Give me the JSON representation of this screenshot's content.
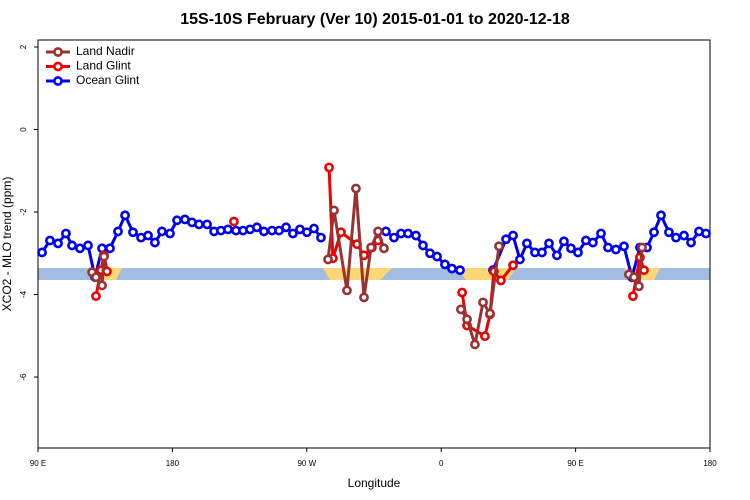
{
  "chart_data": {
    "type": "line",
    "title": "15S-10S February (Ver 10)   2015-01-01 to 2020-12-18",
    "x_label": "Longitude",
    "y_label": "XCO2 - MLO trend (ppm)",
    "xlim": [
      90,
      540
    ],
    "xticks": [
      {
        "value": 90,
        "label": "90 E"
      },
      {
        "value": 180,
        "label": "180"
      },
      {
        "value": 270,
        "label": "90 W"
      },
      {
        "value": 360,
        "label": "0"
      },
      {
        "value": 450,
        "label": "90 E"
      },
      {
        "value": 540,
        "label": "180"
      }
    ],
    "ylim": [
      -7.72,
      2.17
    ],
    "yticks": [
      2,
      0,
      -2,
      -4,
      -6
    ],
    "grid": false,
    "legend": "top-left",
    "series": [
      {
        "name": "Land Nadir",
        "color": "#993333",
        "x": [
          126.2,
          128.8,
          132.9,
          134.2,
          null,
          284.2,
          288.2,
          296.9,
          302.9,
          308.3,
          313.0,
          317.7,
          321.7,
          null,
          373.2,
          377.3,
          382.6,
          388.0,
          392.7,
          398.7,
          null,
          485.7,
          489.1,
          492.4,
          494.5
        ],
        "values": [
          -3.46,
          -3.58,
          -3.78,
          -3.08,
          null,
          -3.15,
          -1.96,
          -3.9,
          -1.43,
          -4.07,
          -2.86,
          -2.47,
          -2.88,
          null,
          -4.36,
          -4.6,
          -5.21,
          -4.19,
          -4.46,
          -2.83,
          null,
          -3.51,
          -3.58,
          -3.8,
          -2.86
        ]
      },
      {
        "name": "Land Glint",
        "color": "#ee0000",
        "x": [
          128.8,
          132.2,
          134.2,
          136.2,
          null,
          221.2,
          null,
          284.9,
          287.5,
          292.9,
          303.6,
          308.3,
          313.6,
          317.7,
          null,
          374.0,
          377.3,
          389.3,
          392.7,
          395.3,
          400.0,
          408.1,
          null,
          488.4,
          493.1,
          495.8
        ],
        "values": [
          -4.04,
          -3.41,
          -3.05,
          -3.44,
          null,
          -2.23,
          null,
          -0.92,
          -3.12,
          -2.49,
          -2.78,
          -3.05,
          -2.86,
          -2.69,
          null,
          -3.95,
          -4.75,
          -5.01,
          -4.48,
          -3.44,
          -3.66,
          -3.29,
          null,
          -4.04,
          -3.1,
          -3.41
        ]
      },
      {
        "name": "Ocean Glint",
        "color": "#0000ee",
        "x": [
          92.7,
          98.0,
          103.4,
          108.7,
          112.8,
          118.1,
          123.5,
          128.2,
          132.9,
          138.2,
          143.6,
          148.3,
          153.6,
          159.0,
          163.7,
          168.3,
          173.0,
          178.4,
          183.1,
          188.4,
          193.1,
          197.8,
          203.2,
          207.9,
          212.5,
          217.2,
          222.6,
          227.3,
          232.0,
          236.6,
          241.3,
          246.7,
          251.4,
          256.1,
          260.7,
          265.4,
          270.1,
          274.8,
          279.5,
          null,
          323.0,
          328.4,
          333.1,
          337.8,
          343.1,
          347.8,
          352.5,
          357.2,
          362.5,
          367.2,
          372.6,
          null,
          394.7,
          403.4,
          408.1,
          412.7,
          417.4,
          422.8,
          427.5,
          432.2,
          437.5,
          442.2,
          446.9,
          451.6,
          456.9,
          461.6,
          467.0,
          471.7,
          477.0,
          482.4,
          487.7,
          493.1,
          497.8,
          502.5,
          507.2,
          512.5,
          517.2,
          522.6,
          527.3,
          532.6,
          537.3
        ],
        "values": [
          -2.98,
          -2.69,
          -2.76,
          -2.52,
          -2.81,
          -2.88,
          -2.81,
          -3.58,
          -2.88,
          -2.88,
          -2.47,
          -2.08,
          -2.49,
          -2.62,
          -2.57,
          -2.74,
          -2.47,
          -2.52,
          -2.2,
          -2.18,
          -2.25,
          -2.3,
          -2.3,
          -2.47,
          -2.45,
          -2.42,
          -2.45,
          -2.45,
          -2.42,
          -2.37,
          -2.47,
          -2.45,
          -2.45,
          -2.37,
          -2.52,
          -2.42,
          -2.49,
          -2.4,
          -2.62,
          null,
          -2.47,
          -2.62,
          -2.52,
          -2.52,
          -2.57,
          -2.81,
          -3.0,
          -3.08,
          -3.27,
          -3.37,
          -3.41,
          null,
          -3.41,
          -2.66,
          -2.57,
          -3.15,
          -2.76,
          -2.98,
          -2.98,
          -2.76,
          -3.05,
          -2.71,
          -2.88,
          -2.98,
          -2.69,
          -2.74,
          -2.52,
          -2.86,
          -2.91,
          -2.83,
          -3.58,
          -2.86,
          -2.86,
          -2.49,
          -2.08,
          -2.49,
          -2.62,
          -2.57,
          -2.74,
          -2.47,
          -2.52
        ]
      }
    ]
  }
}
